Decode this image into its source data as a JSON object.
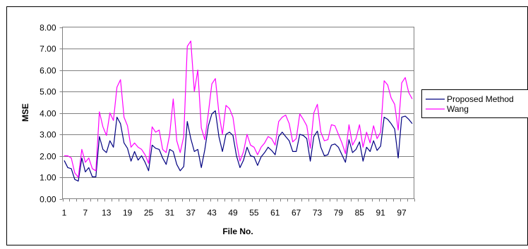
{
  "chart_data": {
    "type": "line",
    "title": "",
    "xlabel": "File No.",
    "ylabel": "MSE",
    "ylim": [
      0,
      8
    ],
    "y_ticks": [
      "0.00",
      "1.00",
      "2.00",
      "3.00",
      "4.00",
      "5.00",
      "6.00",
      "7.00",
      "8.00"
    ],
    "x_range": [
      1,
      100
    ],
    "x_ticks": [
      1,
      7,
      13,
      19,
      25,
      31,
      37,
      43,
      49,
      55,
      61,
      67,
      73,
      79,
      85,
      91,
      97
    ],
    "grid": "horizontal",
    "legend_position": "right",
    "series": [
      {
        "name": "Proposed Method",
        "color": "#000080",
        "values": [
          1.78,
          1.45,
          1.4,
          0.9,
          0.82,
          1.9,
          1.25,
          1.45,
          1.02,
          1.02,
          2.9,
          2.3,
          2.15,
          2.7,
          2.4,
          3.8,
          3.5,
          2.6,
          2.35,
          1.75,
          2.2,
          1.8,
          2.0,
          1.7,
          1.3,
          2.5,
          2.35,
          2.3,
          1.9,
          1.6,
          2.3,
          2.2,
          1.6,
          1.3,
          1.5,
          3.6,
          2.8,
          2.2,
          2.3,
          1.45,
          2.3,
          3.4,
          3.95,
          4.1,
          2.9,
          2.2,
          3.0,
          3.1,
          2.95,
          2.0,
          1.45,
          1.8,
          2.4,
          2.0,
          1.95,
          1.55,
          1.95,
          2.15,
          2.4,
          2.25,
          2.05,
          2.9,
          3.1,
          2.9,
          2.7,
          2.2,
          2.2,
          3.0,
          2.95,
          2.8,
          1.75,
          2.9,
          3.15,
          2.4,
          2.0,
          2.05,
          2.5,
          2.55,
          2.4,
          2.05,
          1.7,
          2.75,
          2.15,
          2.3,
          2.65,
          1.75,
          2.4,
          2.2,
          2.7,
          2.25,
          2.45,
          3.8,
          3.7,
          3.5,
          3.25,
          1.9,
          3.8,
          3.85,
          3.7,
          3.5
        ]
      },
      {
        "name": "Wang",
        "color": "#ff00ff",
        "values": [
          2.0,
          2.0,
          1.9,
          1.2,
          1.0,
          2.3,
          1.7,
          1.9,
          1.4,
          1.3,
          4.05,
          3.35,
          2.95,
          4.0,
          3.65,
          5.2,
          5.55,
          3.8,
          3.4,
          2.4,
          2.6,
          2.4,
          2.3,
          2.05,
          1.65,
          3.35,
          3.1,
          3.2,
          2.3,
          2.15,
          3.0,
          4.65,
          2.7,
          2.15,
          2.9,
          7.1,
          7.35,
          5.0,
          6.0,
          3.3,
          2.75,
          4.0,
          5.35,
          5.6,
          4.0,
          3.0,
          4.35,
          4.2,
          3.8,
          2.65,
          1.75,
          2.2,
          3.0,
          2.5,
          2.4,
          2.05,
          2.4,
          2.6,
          2.9,
          2.8,
          2.5,
          3.6,
          3.8,
          3.9,
          3.5,
          2.65,
          2.8,
          3.95,
          3.7,
          3.4,
          2.35,
          4.0,
          4.4,
          3.1,
          2.7,
          2.75,
          3.45,
          3.4,
          3.0,
          2.6,
          2.1,
          3.45,
          2.5,
          2.8,
          3.45,
          2.4,
          3.1,
          2.6,
          3.4,
          2.8,
          3.1,
          5.5,
          5.3,
          4.7,
          4.4,
          3.2,
          5.4,
          5.65,
          4.95,
          4.65
        ]
      }
    ]
  }
}
